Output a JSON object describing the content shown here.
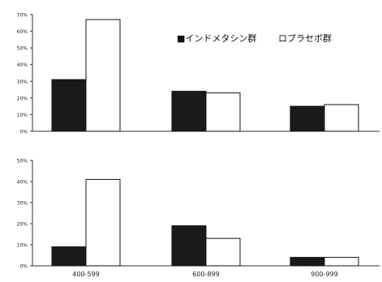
{
  "chart_data": [
    {
      "type": "bar",
      "categories": [
        "400-599",
        "600-899",
        "900-999"
      ],
      "series": [
        {
          "name": "インドメタシン群",
          "values": [
            31,
            24,
            15
          ]
        },
        {
          "name": "プラセボ群",
          "values": [
            67,
            23,
            16
          ]
        }
      ],
      "ylim": [
        0,
        70
      ],
      "yticks": [
        "0%",
        "10%",
        "20%",
        "30%",
        "40%",
        "50%",
        "60%",
        "70%"
      ],
      "tick_step": 10,
      "xlabel": "",
      "ylabel": "",
      "show_category_labels": false,
      "legend": [
        "■インドメタシン群",
        "ロプラセボ群"
      ],
      "legend_position": "top-right",
      "grid": false,
      "colors": {
        "series0": "#1a1a1a",
        "series1": "#ffffff",
        "axis": "#333333"
      }
    },
    {
      "type": "bar",
      "categories": [
        "400-599",
        "600-899",
        "900-999"
      ],
      "series": [
        {
          "name": "インドメタシン群",
          "values": [
            9,
            19,
            4
          ]
        },
        {
          "name": "プラセボ群",
          "values": [
            41,
            13,
            4
          ]
        }
      ],
      "ylim": [
        0,
        50
      ],
      "yticks": [
        "0%",
        "10%",
        "20%",
        "30%",
        "40%",
        "50%"
      ],
      "tick_step": 10,
      "xlabel": "",
      "ylabel": "",
      "show_category_labels": true,
      "grid": false,
      "colors": {
        "series0": "#1a1a1a",
        "series1": "#ffffff",
        "axis": "#333333"
      }
    }
  ]
}
